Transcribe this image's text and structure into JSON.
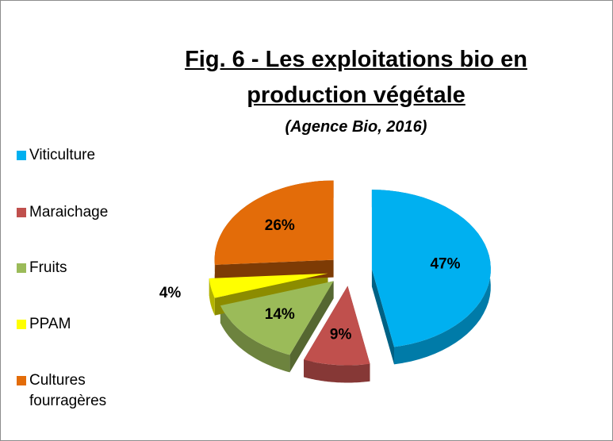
{
  "chart_data": {
    "type": "pie",
    "title": "Fig. 6 - Les exploitations bio en production végétale",
    "subtitle": "(Agence Bio, 2016)",
    "categories": [
      "Viticulture",
      "Maraichage",
      "Fruits",
      "PPAM",
      "Cultures fourragères"
    ],
    "values": [
      47,
      9,
      14,
      4,
      26
    ],
    "value_labels": [
      "47%",
      "9%",
      "14%",
      "4%",
      "26%"
    ],
    "colors": [
      "#00b0f0",
      "#c0504d",
      "#9bbb59",
      "#ffff00",
      "#e36c09"
    ],
    "legend": "left"
  }
}
